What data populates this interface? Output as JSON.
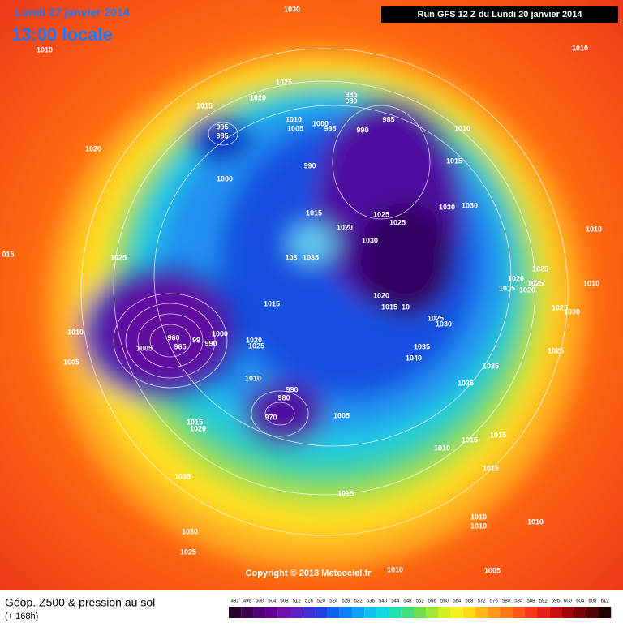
{
  "header": {
    "date": "Lundi 27 janvier 2014",
    "time": "13:00 locale",
    "run": "Run GFS 12 Z du Lundi 20 janvier 2014"
  },
  "copyright": "Copyright © 2013 Meteociel.fr",
  "legend": {
    "title": "Géop. Z500 & pression au sol",
    "subtitle": "(+ 168h)",
    "scale": [
      492,
      496,
      500,
      504,
      508,
      512,
      516,
      520,
      524,
      528,
      532,
      536,
      540,
      544,
      548,
      552,
      556,
      560,
      564,
      568,
      572,
      576,
      580,
      584,
      588,
      592,
      596,
      600,
      604,
      608,
      612
    ]
  },
  "pressure_labels": [
    "1030",
    "1010",
    "1010",
    "1025",
    "1015",
    "1020",
    "985",
    "980",
    "1010",
    "1005",
    "1000",
    "995",
    "990",
    "985",
    "1010",
    "995",
    "985",
    "1020",
    "990",
    "1015",
    "1000",
    "1015",
    "1020",
    "1025",
    "1025",
    "1030",
    "1030",
    "1010",
    "015",
    "1025",
    "1030",
    "1035",
    "103",
    "1025",
    "1020",
    "1025",
    "1015",
    "1020",
    "1010",
    "1020",
    "1015",
    "10",
    "1015",
    "1025",
    "1030",
    "1030",
    "1025",
    "1010",
    "960",
    "99",
    "1000",
    "965",
    "990",
    "1020",
    "1025",
    "1005",
    "1035",
    "1040",
    "1025",
    "1005",
    "1035",
    "1010",
    "1035",
    "990",
    "980",
    "970",
    "1005",
    "1015",
    "1020",
    "1010",
    "1015",
    "1015",
    "1015",
    "1035",
    "1015",
    "1010",
    "1010",
    "1010",
    "1030",
    "1025",
    "1010",
    "1005"
  ]
}
